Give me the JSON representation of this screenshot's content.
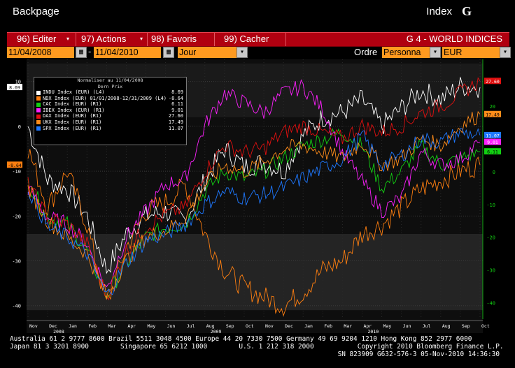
{
  "header": {
    "left_title": "Backpage",
    "right_title": "Index",
    "logo": "G"
  },
  "menu": {
    "items": [
      "96) Editer",
      "97) Actions",
      "98) Favoris",
      "99) Cacher"
    ],
    "page_title": "G 4 - WORLD INDICES"
  },
  "controls": {
    "start_date": "11/04/2008",
    "end_date": "11/04/2010",
    "period": "Jour",
    "order_label": "Ordre",
    "order_value": "Personna",
    "currency": "EUR"
  },
  "legend": {
    "title1": "Normaliser au 11/04/2008",
    "title2": "Dern Prix",
    "items": [
      {
        "label": "INDU Index (EUR)  (L4)",
        "value": "8.69",
        "color": "#ffffff"
      },
      {
        "label": "NDX Index (EUR) 01/01/2008-12/31/2009  (L4)",
        "value": "-8.64",
        "color": "#ff7f10"
      },
      {
        "label": "CAC Index (EUR)  (R1)",
        "value": "6.11",
        "color": "#12d012"
      },
      {
        "label": "IBEX Index (EUR)  (R1)",
        "value": "9.01",
        "color": "#ff20ff"
      },
      {
        "label": "DAX Index (EUR)  (R1)",
        "value": "27.60",
        "color": "#e01010"
      },
      {
        "label": "UKX Index (EUR)  (R1)",
        "value": "17.49",
        "color": "#ff8c1a"
      },
      {
        "label": "SPX Index (EUR)  (R1)",
        "value": "11.07",
        "color": "#1e78ff"
      }
    ]
  },
  "chart_data": {
    "type": "line",
    "x_months": [
      "Nov",
      "Dec",
      "Jan",
      "Feb",
      "Mar",
      "Apr",
      "May",
      "Jun",
      "Jul",
      "Aug",
      "Sep",
      "Oct",
      "Nov",
      "Dec",
      "Jan",
      "Feb",
      "Mar",
      "Apr",
      "May",
      "Jun",
      "Jul",
      "Aug",
      "Sep",
      "Oct"
    ],
    "x_years": [
      "2008",
      "2009",
      "2010"
    ],
    "left_ticks": [
      10,
      0,
      -10,
      -20,
      -30,
      -40
    ],
    "right_ticks": [
      20,
      10,
      0,
      -10,
      -20,
      -30,
      -40
    ],
    "left_ylim": [
      -43,
      14
    ],
    "right_ylim": [
      -45,
      33
    ],
    "series": [
      {
        "name": "INDU Index (EUR)",
        "axis": "left",
        "color": "#ffffff",
        "values": [
          0,
          -12,
          -14,
          -20,
          -32,
          -24,
          -20,
          -19,
          -21,
          -12,
          -5,
          -9,
          -8,
          -10,
          -2,
          2,
          3,
          6,
          0,
          4,
          8,
          6,
          9,
          8.7
        ]
      },
      {
        "name": "NDX Index (EUR)",
        "axis": "left",
        "color": "#ff7f10",
        "values": [
          -5,
          -18,
          -10,
          -22,
          -40,
          -27,
          -19,
          -17,
          -13,
          -24,
          -32,
          -36,
          -38,
          -40,
          -37,
          -32,
          -30,
          -24,
          -22,
          -18,
          -14,
          -12,
          -10,
          -8.6
        ]
      },
      {
        "name": "CAC Index (EUR)",
        "axis": "right",
        "color": "#12d012",
        "values": [
          -3,
          -14,
          -16,
          -24,
          -38,
          -28,
          -20,
          -17,
          -16,
          -6,
          0,
          -2,
          0,
          4,
          8,
          10,
          12,
          8,
          -5,
          0,
          8,
          2,
          4,
          6.1
        ]
      },
      {
        "name": "IBEX Index (EUR)",
        "axis": "right",
        "color": "#ff20ff",
        "values": [
          -5,
          -14,
          -16,
          -22,
          -36,
          -20,
          -12,
          -4,
          -2,
          14,
          24,
          21,
          18,
          24,
          26,
          19,
          6,
          -3,
          -12,
          -8,
          6,
          2,
          4,
          9
        ]
      },
      {
        "name": "DAX Index (EUR)",
        "axis": "right",
        "color": "#e01010",
        "values": [
          -4,
          -14,
          -16,
          -22,
          -38,
          -24,
          -17,
          -13,
          -11,
          0,
          8,
          6,
          7,
          12,
          14,
          12,
          10,
          14,
          12,
          14,
          18,
          20,
          24,
          27.6
        ]
      },
      {
        "name": "UKX Index (EUR)",
        "axis": "right",
        "color": "#ff8c1a",
        "values": [
          -5,
          -15,
          -20,
          -25,
          -38,
          -27,
          -20,
          -18,
          -14,
          -4,
          2,
          0,
          3,
          7,
          8,
          6,
          4,
          9,
          2,
          4,
          10,
          8,
          14,
          17.5
        ]
      },
      {
        "name": "SPX Index (EUR)",
        "axis": "right",
        "color": "#1e78ff",
        "values": [
          -5,
          -17,
          -20,
          -25,
          -38,
          -28,
          -21,
          -19,
          -16,
          -10,
          -6,
          -8,
          -7,
          -5,
          -2,
          1,
          4,
          11,
          2,
          5,
          10,
          9,
          12,
          11.1
        ]
      }
    ],
    "end_labels": [
      {
        "text": "8.69",
        "axis": "left",
        "value": 8.69,
        "bg": "#ffffff",
        "fg": "#000000",
        "side": "left"
      },
      {
        "text": "-8.64",
        "axis": "left",
        "value": -8.64,
        "bg": "#ff7f10",
        "fg": "#000000",
        "side": "left"
      },
      {
        "text": "27.60",
        "axis": "right",
        "value": 27.6,
        "bg": "#e01010",
        "fg": "#ffffff",
        "side": "right"
      },
      {
        "text": "17.49",
        "axis": "right",
        "value": 17.49,
        "bg": "#ff8c1a",
        "fg": "#000000",
        "side": "right"
      },
      {
        "text": "11.07",
        "axis": "right",
        "value": 11.07,
        "bg": "#1e78ff",
        "fg": "#ffffff",
        "side": "right"
      },
      {
        "text": "9.01",
        "axis": "right",
        "value": 9.01,
        "bg": "#ff20ff",
        "fg": "#ffffff",
        "side": "right"
      },
      {
        "text": "6.11",
        "axis": "right",
        "value": 6.11,
        "bg": "#12d012",
        "fg": "#000000",
        "side": "right"
      }
    ]
  },
  "footer": {
    "line1": "Australia 61 2 9777 8600 Brazil 5511 3048 4500 Europe 44 20 7330 7500 Germany 49 69 9204 1210 Hong Kong 852 2977 6000",
    "line2": "Japan 81 3 3201 8900        Singapore 65 6212 1000        U.S. 1 212 318 2000           Copyright 2010 Bloomberg Finance L.P.",
    "line3": "SN 823909 G632-576-3 05-Nov-2010 14:36:30"
  }
}
